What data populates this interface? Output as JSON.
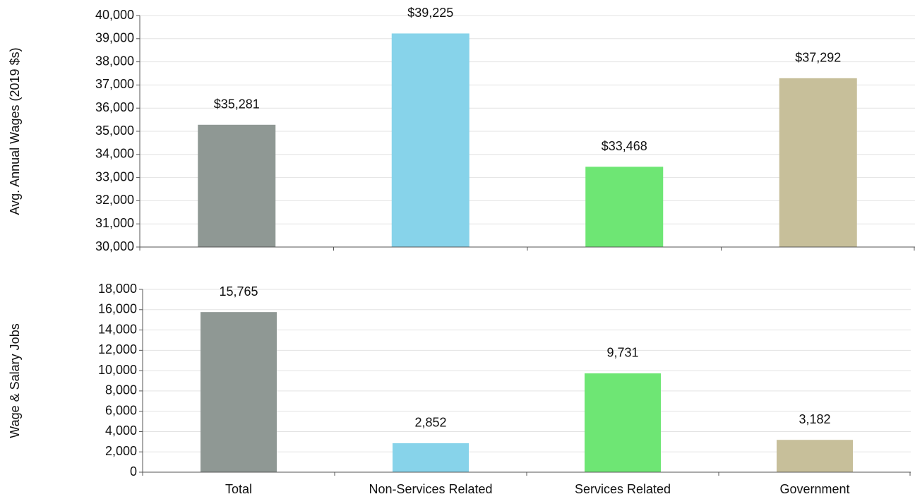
{
  "chart_data": [
    {
      "type": "bar",
      "y_label": "Avg. Annual Wages (2019 $s)",
      "categories": [
        null,
        null,
        null,
        null
      ],
      "values": [
        35281,
        39225,
        33468,
        37292
      ],
      "value_labels": [
        "$35,281",
        "$39,225",
        "$33,468",
        "$37,292"
      ],
      "colors": [
        "#8f9894",
        "#87d3ea",
        "#6ee674",
        "#c7bf9a"
      ],
      "ylim": [
        30000,
        40000
      ],
      "yticks": [
        {
          "value": 30000,
          "label": "30,000"
        },
        {
          "value": 31000,
          "label": "31,000"
        },
        {
          "value": 32000,
          "label": "32,000"
        },
        {
          "value": 33000,
          "label": "33,000"
        },
        {
          "value": 34000,
          "label": "34,000"
        },
        {
          "value": 35000,
          "label": "35,000"
        },
        {
          "value": 36000,
          "label": "36,000"
        },
        {
          "value": 37000,
          "label": "37,000"
        },
        {
          "value": 38000,
          "label": "38,000"
        },
        {
          "value": 39000,
          "label": "39,000"
        },
        {
          "value": 40000,
          "label": "40,000"
        }
      ],
      "grid": true
    },
    {
      "type": "bar",
      "y_label": "Wage & Salary Jobs",
      "categories": [
        "Total",
        "Non-Services Related",
        "Services Related",
        "Government"
      ],
      "values": [
        15765,
        2852,
        9731,
        3182
      ],
      "value_labels": [
        "15,765",
        "2,852",
        "9,731",
        "3,182"
      ],
      "colors": [
        "#8f9894",
        "#87d3ea",
        "#6ee674",
        "#c7bf9a"
      ],
      "ylim": [
        0,
        18000
      ],
      "yticks": [
        0,
        {
          "value": 2000,
          "label": "2,000"
        },
        {
          "value": 4000,
          "label": "4,000"
        },
        {
          "value": 6000,
          "label": "6,000"
        },
        {
          "value": 8000,
          "label": "8,000"
        },
        {
          "value": 10000,
          "label": "10,000"
        },
        {
          "value": 12000,
          "label": "12,000"
        },
        {
          "value": 14000,
          "label": "14,000"
        },
        {
          "value": 16000,
          "label": "16,000"
        },
        {
          "value": 18000,
          "label": "18,000"
        }
      ],
      "grid": true
    }
  ]
}
